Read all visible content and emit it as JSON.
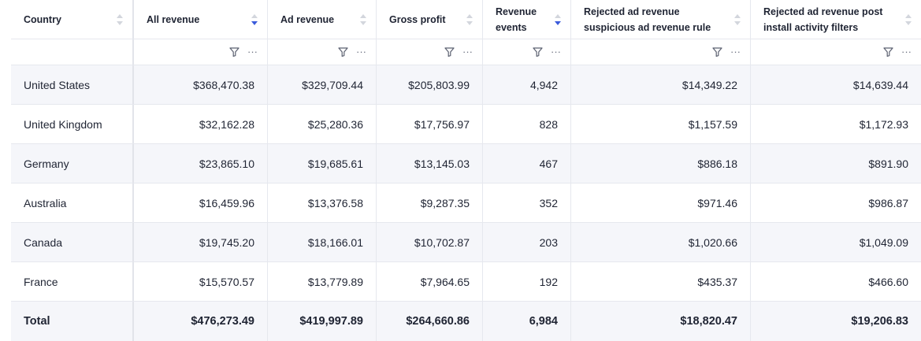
{
  "columns": [
    {
      "label": "Country",
      "sort": "none"
    },
    {
      "label": "All revenue",
      "sort": "desc"
    },
    {
      "label": "Ad revenue",
      "sort": "none"
    },
    {
      "label": "Gross profit",
      "sort": "none"
    },
    {
      "label": "Revenue events",
      "sort": "desc"
    },
    {
      "label": "Rejected ad revenue suspicious ad revenue rule",
      "sort": "none"
    },
    {
      "label": "Rejected ad revenue post install activity filters",
      "sort": "none"
    }
  ],
  "filter_icon": "funnel-icon",
  "more_icon_label": "···",
  "rows": [
    [
      "United States",
      "$368,470.38",
      "$329,709.44",
      "$205,803.99",
      "4,942",
      "$14,349.22",
      "$14,639.44"
    ],
    [
      "United Kingdom",
      "$32,162.28",
      "$25,280.36",
      "$17,756.97",
      "828",
      "$1,157.59",
      "$1,172.93"
    ],
    [
      "Germany",
      "$23,865.10",
      "$19,685.61",
      "$13,145.03",
      "467",
      "$886.18",
      "$891.90"
    ],
    [
      "Australia",
      "$16,459.96",
      "$13,376.58",
      "$9,287.35",
      "352",
      "$971.46",
      "$986.87"
    ],
    [
      "Canada",
      "$19,745.20",
      "$18,166.01",
      "$10,702.87",
      "203",
      "$1,020.66",
      "$1,049.09"
    ],
    [
      "France",
      "$15,570.57",
      "$13,779.89",
      "$7,964.65",
      "192",
      "$435.37",
      "$466.60"
    ]
  ],
  "total": [
    "Total",
    "$476,273.49",
    "$419,997.89",
    "$264,660.86",
    "6,984",
    "$18,820.47",
    "$19,206.83"
  ],
  "colors": {
    "sort_active": "#3b5bdb",
    "sort_inactive": "#d3d6dd",
    "alt_row": "#f5f6fa",
    "border": "#e6e8ee"
  }
}
